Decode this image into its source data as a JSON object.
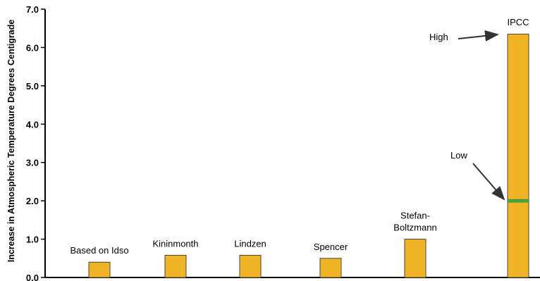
{
  "chart_data": {
    "type": "bar",
    "ylabel": "Increase in Atmospheric Temperature Degrees Centigrade",
    "ylim": [
      0,
      7
    ],
    "yticks": [
      "0.0",
      "1.0",
      "2.0",
      "3.0",
      "4.0",
      "5.0",
      "6.0",
      "7.0"
    ],
    "categories": [
      {
        "label": [
          "Based on Idso"
        ],
        "value": 0.4
      },
      {
        "label": [
          "Kininmonth"
        ],
        "value": 0.58
      },
      {
        "label": [
          "Lindzen"
        ],
        "value": 0.58
      },
      {
        "label": [
          "Spencer"
        ],
        "value": 0.5
      },
      {
        "label": [
          "Stefan-",
          "Boltzmann"
        ],
        "value": 1.0
      },
      {
        "label": [
          "IPCC"
        ],
        "value": 6.35,
        "low": 2.0
      }
    ],
    "annotations": {
      "high": "High",
      "low": "Low"
    },
    "colors": {
      "bar": "#F0B323",
      "bar_stroke": "#444444",
      "low_marker": "#3AAA47"
    },
    "grid": false
  }
}
